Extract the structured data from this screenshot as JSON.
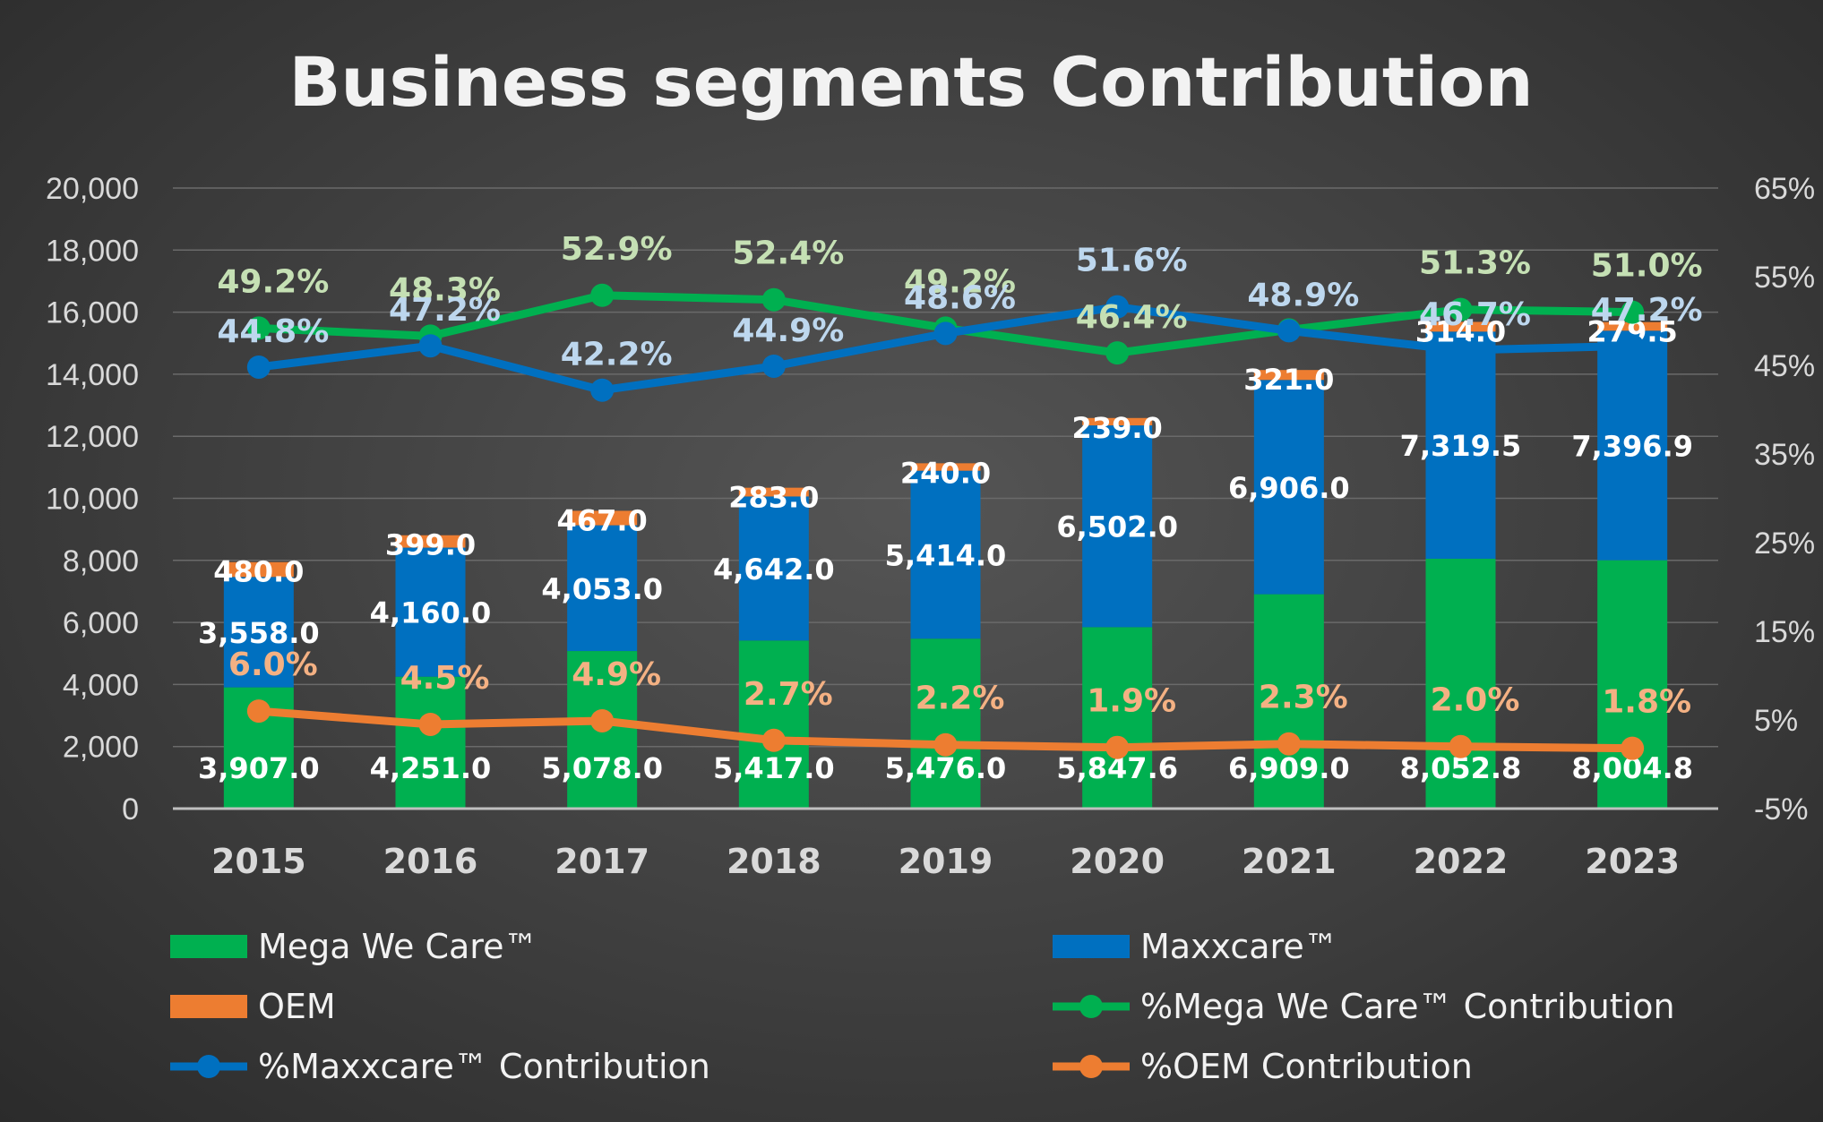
{
  "chart_data": {
    "type": "bar",
    "title": "Business segments Contribution",
    "categories": [
      "2015",
      "2016",
      "2017",
      "2018",
      "2019",
      "2020",
      "2021",
      "2022",
      "2023"
    ],
    "ylim": [
      0,
      20000
    ],
    "y_ticks": [
      "0",
      "2,000",
      "4,000",
      "6,000",
      "8,000",
      "10,000",
      "12,000",
      "14,000",
      "16,000",
      "18,000",
      "20,000"
    ],
    "y2lim": [
      -5,
      65
    ],
    "y2_ticks": [
      "-5%",
      "5%",
      "15%",
      "25%",
      "35%",
      "45%",
      "55%",
      "65%"
    ],
    "grid": true,
    "legend_position": "bottom",
    "bar_series": [
      {
        "name": "Mega We Care™",
        "color": "#00b050",
        "values": [
          3907.0,
          4251.0,
          5078.0,
          5417.0,
          5476.0,
          5847.6,
          6909.0,
          8052.8,
          8004.8
        ],
        "labels": [
          "3,907.0",
          "4,251.0",
          "5,078.0",
          "5,417.0",
          "5,476.0",
          "5,847.6",
          "6,909.0",
          "8,052.8",
          "8,004.8"
        ]
      },
      {
        "name": "Maxxcare™",
        "color": "#0070c0",
        "values": [
          3558.0,
          4160.0,
          4053.0,
          4642.0,
          5414.0,
          6502.0,
          6906.0,
          7319.5,
          7396.9
        ],
        "labels": [
          "3,558.0",
          "4,160.0",
          "4,053.0",
          "4,642.0",
          "5,414.0",
          "6,502.0",
          "6,906.0",
          "7,319.5",
          "7,396.9"
        ]
      },
      {
        "name": "OEM",
        "color": "#ed7d31",
        "values": [
          480.0,
          399.0,
          467.0,
          283.0,
          240.0,
          239.0,
          321.0,
          314.0,
          279.5
        ],
        "labels": [
          "480.0",
          "399.0",
          "467.0",
          "283.0",
          "240.0",
          "239.0",
          "321.0",
          "314.0",
          "279.5"
        ]
      }
    ],
    "line_series": [
      {
        "name": "%Mega We Care™ Contribution",
        "color": "#00b050",
        "label_color": "#c5e0b4",
        "values": [
          49.2,
          48.3,
          52.9,
          52.4,
          49.2,
          46.4,
          49.0,
          51.3,
          51.0
        ],
        "labels": [
          "49.2%",
          "48.3%",
          "52.9%",
          "52.4%",
          "49.2%",
          "46.4%",
          "",
          "51.3%",
          "51.0%"
        ]
      },
      {
        "name": "%Maxxcare™ Contribution",
        "color": "#0070c0",
        "label_color": "#bdd7ee",
        "values": [
          44.8,
          47.2,
          42.2,
          44.9,
          48.6,
          51.6,
          48.9,
          46.7,
          47.2
        ],
        "labels": [
          "44.8%",
          "47.2%",
          "42.2%",
          "44.9%",
          "48.6%",
          "51.6%",
          "48.9%",
          "46.7%",
          "47.2%"
        ]
      },
      {
        "name": "%OEM Contribution",
        "color": "#ed7d31",
        "label_color": "#f4b183",
        "values": [
          6.0,
          4.5,
          4.9,
          2.7,
          2.2,
          1.9,
          2.3,
          2.0,
          1.8
        ],
        "labels": [
          "6.0%",
          "4.5%",
          "4.9%",
          "2.7%",
          "2.2%",
          "1.9%",
          "2.3%",
          "2.0%",
          "1.8%"
        ]
      }
    ],
    "legend": [
      {
        "label": "Mega We Care™",
        "kind": "bar",
        "color": "#00b050"
      },
      {
        "label": "Maxxcare™",
        "kind": "bar",
        "color": "#0070c0"
      },
      {
        "label": "OEM",
        "kind": "bar",
        "color": "#ed7d31"
      },
      {
        "label": "%Mega We Care™ Contribution",
        "kind": "line",
        "color": "#00b050"
      },
      {
        "label": "%Maxxcare™ Contribution",
        "kind": "line",
        "color": "#0070c0"
      },
      {
        "label": "%OEM Contribution",
        "kind": "line",
        "color": "#ed7d31"
      }
    ]
  }
}
